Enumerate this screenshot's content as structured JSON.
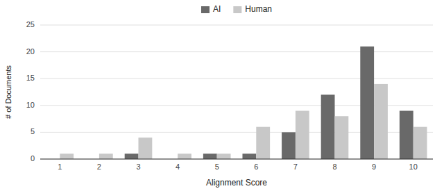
{
  "chart_data": {
    "type": "bar",
    "categories": [
      1,
      2,
      3,
      4,
      5,
      6,
      7,
      8,
      9,
      10
    ],
    "series": [
      {
        "name": "AI",
        "color": "#696969",
        "values": [
          0,
          0,
          1,
          0,
          1,
          1,
          5,
          12,
          21,
          9
        ]
      },
      {
        "name": "Human",
        "color": "#c8c8c8",
        "values": [
          1,
          1,
          4,
          1,
          1,
          6,
          9,
          8,
          14,
          6
        ]
      }
    ],
    "xlabel": "Alignment Score",
    "ylabel": "# of Documents",
    "ylim": [
      0,
      25
    ],
    "yticks": [
      0,
      5,
      10,
      15,
      20,
      25
    ],
    "grid": true,
    "legend": "top"
  }
}
